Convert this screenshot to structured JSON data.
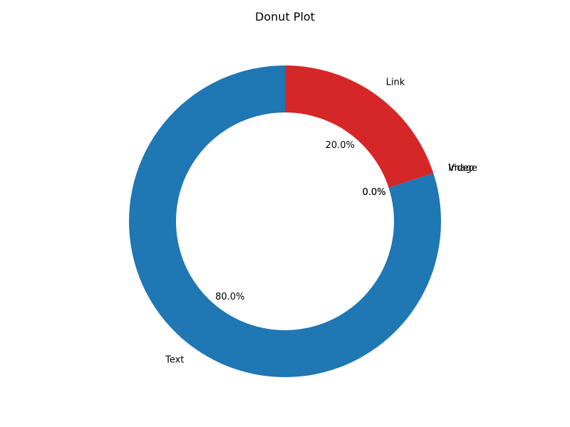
{
  "chart_data": {
    "type": "pie",
    "title": "Donut Plot",
    "donut": true,
    "start_angle_deg": 90,
    "direction": "clockwise",
    "slices": [
      {
        "label": "Link",
        "value": 20,
        "percent_label": "20.0%",
        "color": "#d62728"
      },
      {
        "label": "Image",
        "value": 0,
        "percent_label": "0.0%",
        "color": "#2ca02c"
      },
      {
        "label": "Video",
        "value": 0,
        "percent_label": "0.0%",
        "color": "#ff7f0e"
      },
      {
        "label": "Text",
        "value": 80,
        "percent_label": "80.0%",
        "color": "#1f77b4"
      }
    ]
  }
}
